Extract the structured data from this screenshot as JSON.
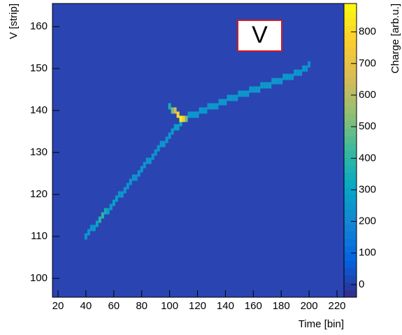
{
  "chart_data": {
    "type": "heatmap",
    "x_label": "Time [bin]",
    "y_label": "V [strip]",
    "z_label": "Charge [arb.u.]",
    "annotation": "V",
    "xlim": [
      16,
      225
    ],
    "xticks": [
      20,
      40,
      60,
      80,
      100,
      120,
      140,
      160,
      180,
      200,
      220
    ],
    "ylim": [
      95.5,
      165.5
    ],
    "yticks": [
      100,
      110,
      120,
      130,
      140,
      150,
      160
    ],
    "zlim": [
      -40,
      890
    ],
    "zticks": [
      0,
      100,
      200,
      300,
      400,
      500,
      600,
      700,
      800
    ],
    "colormap": [
      "#352a87",
      "#0363e1",
      "#1485d4",
      "#06a7c6",
      "#38b99e",
      "#92bf73",
      "#d9ba56",
      "#fcce2e",
      "#f9fb0e"
    ],
    "x": [
      40,
      42,
      44,
      46,
      48,
      50,
      52,
      54,
      56,
      58,
      60,
      62,
      64,
      66,
      68,
      70,
      72,
      74,
      76,
      78,
      80,
      82,
      84,
      86,
      88,
      90,
      92,
      94,
      96,
      98,
      100,
      102,
      104,
      106,
      108,
      110,
      112,
      114,
      116,
      118,
      120,
      122,
      124,
      126,
      128,
      130,
      132,
      134,
      136,
      138,
      140,
      142,
      144,
      146,
      148,
      150,
      152,
      154,
      156,
      158,
      160,
      162,
      164,
      166,
      168,
      170,
      172,
      174,
      176,
      178,
      180,
      182,
      184,
      186,
      188,
      190,
      192,
      194,
      196,
      198,
      200,
      100,
      102,
      104,
      106,
      108,
      110,
      112
    ],
    "y": [
      110,
      111,
      112,
      112,
      113,
      114,
      115,
      116,
      116,
      117,
      118,
      119,
      120,
      120,
      121,
      122,
      123,
      124,
      124,
      125,
      126,
      127,
      128,
      128,
      129,
      130,
      131,
      132,
      132,
      133,
      134,
      135,
      136,
      136,
      137,
      138,
      138,
      139,
      139,
      139,
      139,
      140,
      140,
      140,
      141,
      141,
      141,
      141,
      142,
      142,
      142,
      143,
      143,
      143,
      143,
      144,
      144,
      144,
      144,
      145,
      145,
      145,
      145,
      146,
      146,
      146,
      146,
      147,
      147,
      147,
      147,
      148,
      148,
      148,
      148,
      149,
      149,
      149,
      150,
      150,
      151,
      141,
      140,
      140,
      139,
      138,
      138,
      138
    ],
    "values": [
      250,
      250,
      250,
      260,
      300,
      380,
      400,
      350,
      280,
      260,
      300,
      280,
      250,
      250,
      250,
      240,
      250,
      250,
      240,
      250,
      250,
      240,
      250,
      250,
      240,
      250,
      250,
      250,
      240,
      250,
      250,
      260,
      280,
      300,
      320,
      320,
      300,
      260,
      250,
      250,
      250,
      260,
      250,
      250,
      250,
      260,
      250,
      250,
      250,
      260,
      250,
      250,
      260,
      250,
      250,
      260,
      250,
      250,
      260,
      260,
      250,
      260,
      270,
      260,
      250,
      260,
      270,
      260,
      260,
      250,
      260,
      250,
      260,
      250,
      250,
      260,
      250,
      250,
      240,
      240,
      230,
      350,
      500,
      650,
      800,
      850,
      750,
      500
    ]
  }
}
